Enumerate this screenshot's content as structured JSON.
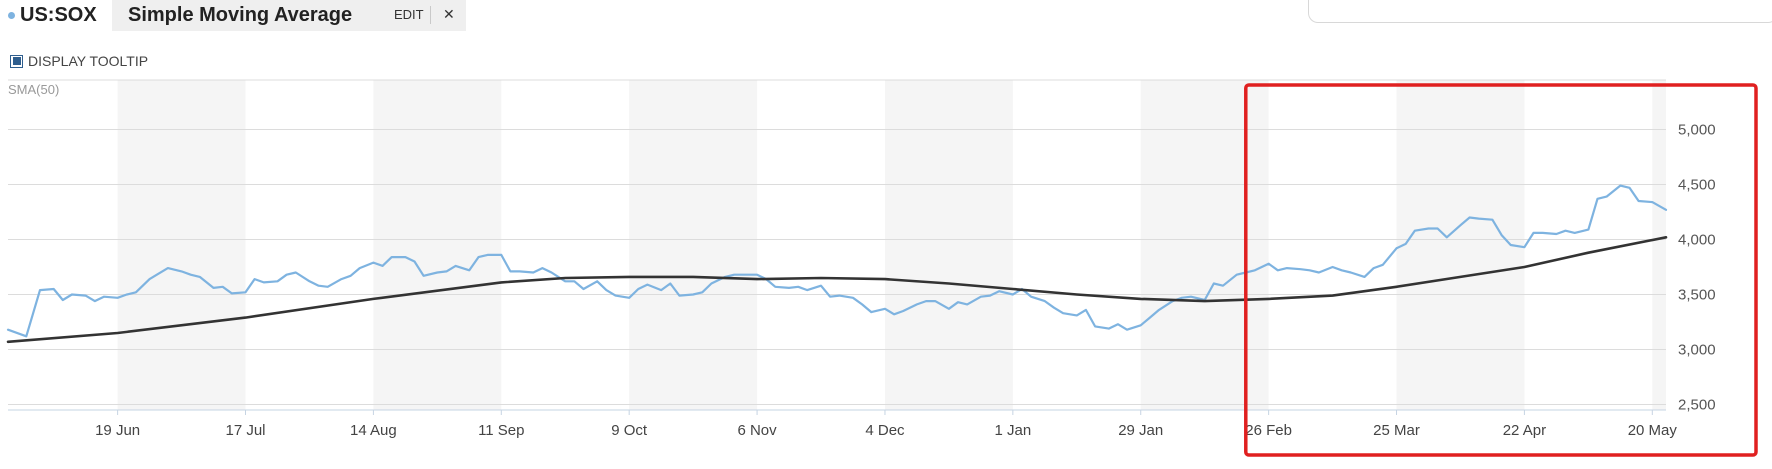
{
  "header": {
    "symbol": "US:SOX",
    "study": "Simple Moving Average",
    "edit_label": "EDIT",
    "close_label": "✕"
  },
  "tooltip_toggle": {
    "label": "DISPLAY TOOLTIP",
    "checked": true
  },
  "colors": {
    "price": "#7eb3e0",
    "sma": "#333333",
    "band": "#f5f5f5",
    "grid": "#dcdcdc",
    "highlight": "#e02020"
  },
  "chart_data": {
    "type": "line",
    "indicator_label": "SMA(50)",
    "xlabel": "",
    "ylabel": "",
    "x_start": "2023-05-26",
    "x_end": "2024-05-23",
    "x_ticks": [
      {
        "date": "2023-06-19",
        "label": "19 Jun"
      },
      {
        "date": "2023-07-17",
        "label": "17 Jul"
      },
      {
        "date": "2023-08-14",
        "label": "14 Aug"
      },
      {
        "date": "2023-09-11",
        "label": "11 Sep"
      },
      {
        "date": "2023-10-09",
        "label": "9 Oct"
      },
      {
        "date": "2023-11-06",
        "label": "6 Nov"
      },
      {
        "date": "2023-12-04",
        "label": "4 Dec"
      },
      {
        "date": "2024-01-01",
        "label": "1 Jan"
      },
      {
        "date": "2024-01-29",
        "label": "29 Jan"
      },
      {
        "date": "2024-02-26",
        "label": "26 Feb"
      },
      {
        "date": "2024-03-25",
        "label": "25 Mar"
      },
      {
        "date": "2024-04-22",
        "label": "22 Apr"
      },
      {
        "date": "2024-05-20",
        "label": "20 May"
      }
    ],
    "y_ticks": [
      2500,
      3000,
      3500,
      4000,
      4500,
      5000
    ],
    "y_tick_labels": [
      "2,500",
      "3,000",
      "3,500",
      "4,000",
      "4,500",
      "5,000"
    ],
    "ylim": [
      2450,
      5450
    ],
    "grid": true,
    "series": [
      {
        "role": "price",
        "points": [
          [
            "2023-05-26",
            3180
          ],
          [
            "2023-05-30",
            3120
          ],
          [
            "2023-06-02",
            3540
          ],
          [
            "2023-06-05",
            3550
          ],
          [
            "2023-06-07",
            3450
          ],
          [
            "2023-06-09",
            3500
          ],
          [
            "2023-06-12",
            3490
          ],
          [
            "2023-06-14",
            3440
          ],
          [
            "2023-06-16",
            3480
          ],
          [
            "2023-06-19",
            3470
          ],
          [
            "2023-06-21",
            3500
          ],
          [
            "2023-06-23",
            3520
          ],
          [
            "2023-06-26",
            3640
          ],
          [
            "2023-06-28",
            3690
          ],
          [
            "2023-06-30",
            3740
          ],
          [
            "2023-07-03",
            3710
          ],
          [
            "2023-07-05",
            3680
          ],
          [
            "2023-07-07",
            3660
          ],
          [
            "2023-07-10",
            3560
          ],
          [
            "2023-07-12",
            3570
          ],
          [
            "2023-07-14",
            3510
          ],
          [
            "2023-07-17",
            3520
          ],
          [
            "2023-07-19",
            3640
          ],
          [
            "2023-07-21",
            3610
          ],
          [
            "2023-07-24",
            3620
          ],
          [
            "2023-07-26",
            3680
          ],
          [
            "2023-07-28",
            3700
          ],
          [
            "2023-07-31",
            3620
          ],
          [
            "2023-08-02",
            3580
          ],
          [
            "2023-08-04",
            3570
          ],
          [
            "2023-08-07",
            3640
          ],
          [
            "2023-08-09",
            3670
          ],
          [
            "2023-08-11",
            3740
          ],
          [
            "2023-08-14",
            3790
          ],
          [
            "2023-08-16",
            3760
          ],
          [
            "2023-08-18",
            3840
          ],
          [
            "2023-08-21",
            3840
          ],
          [
            "2023-08-23",
            3800
          ],
          [
            "2023-08-25",
            3670
          ],
          [
            "2023-08-28",
            3700
          ],
          [
            "2023-08-30",
            3710
          ],
          [
            "2023-09-01",
            3760
          ],
          [
            "2023-09-04",
            3720
          ],
          [
            "2023-09-06",
            3840
          ],
          [
            "2023-09-08",
            3860
          ],
          [
            "2023-09-11",
            3860
          ],
          [
            "2023-09-13",
            3710
          ],
          [
            "2023-09-15",
            3710
          ],
          [
            "2023-09-18",
            3700
          ],
          [
            "2023-09-20",
            3740
          ],
          [
            "2023-09-22",
            3700
          ],
          [
            "2023-09-25",
            3620
          ],
          [
            "2023-09-27",
            3620
          ],
          [
            "2023-09-29",
            3550
          ],
          [
            "2023-10-02",
            3620
          ],
          [
            "2023-10-04",
            3540
          ],
          [
            "2023-10-06",
            3490
          ],
          [
            "2023-10-09",
            3470
          ],
          [
            "2023-10-11",
            3550
          ],
          [
            "2023-10-13",
            3590
          ],
          [
            "2023-10-16",
            3540
          ],
          [
            "2023-10-18",
            3600
          ],
          [
            "2023-10-20",
            3490
          ],
          [
            "2023-10-23",
            3500
          ],
          [
            "2023-10-25",
            3520
          ],
          [
            "2023-10-27",
            3600
          ],
          [
            "2023-10-30",
            3660
          ],
          [
            "2023-11-01",
            3680
          ],
          [
            "2023-11-03",
            3680
          ],
          [
            "2023-11-06",
            3680
          ],
          [
            "2023-11-08",
            3640
          ],
          [
            "2023-11-10",
            3570
          ],
          [
            "2023-11-13",
            3560
          ],
          [
            "2023-11-15",
            3570
          ],
          [
            "2023-11-17",
            3540
          ],
          [
            "2023-11-20",
            3580
          ],
          [
            "2023-11-22",
            3480
          ],
          [
            "2023-11-24",
            3490
          ],
          [
            "2023-11-27",
            3470
          ],
          [
            "2023-11-29",
            3410
          ],
          [
            "2023-12-01",
            3340
          ],
          [
            "2023-12-04",
            3370
          ],
          [
            "2023-12-06",
            3320
          ],
          [
            "2023-12-08",
            3350
          ],
          [
            "2023-12-11",
            3410
          ],
          [
            "2023-12-13",
            3440
          ],
          [
            "2023-12-15",
            3440
          ],
          [
            "2023-12-18",
            3370
          ],
          [
            "2023-12-20",
            3430
          ],
          [
            "2023-12-22",
            3410
          ],
          [
            "2023-12-25",
            3480
          ],
          [
            "2023-12-27",
            3490
          ],
          [
            "2023-12-29",
            3530
          ],
          [
            "2024-01-01",
            3500
          ],
          [
            "2024-01-03",
            3550
          ],
          [
            "2024-01-05",
            3480
          ],
          [
            "2024-01-08",
            3440
          ],
          [
            "2024-01-10",
            3380
          ],
          [
            "2024-01-12",
            3330
          ],
          [
            "2024-01-15",
            3310
          ],
          [
            "2024-01-17",
            3360
          ],
          [
            "2024-01-19",
            3210
          ],
          [
            "2024-01-22",
            3190
          ],
          [
            "2024-01-24",
            3230
          ],
          [
            "2024-01-26",
            3180
          ],
          [
            "2024-01-29",
            3220
          ],
          [
            "2024-01-31",
            3290
          ],
          [
            "2024-02-02",
            3360
          ],
          [
            "2024-02-05",
            3440
          ],
          [
            "2024-02-07",
            3470
          ],
          [
            "2024-02-09",
            3480
          ],
          [
            "2024-02-12",
            3450
          ],
          [
            "2024-02-14",
            3600
          ],
          [
            "2024-02-16",
            3580
          ],
          [
            "2024-02-19",
            3680
          ],
          [
            "2024-02-21",
            3700
          ],
          [
            "2024-02-23",
            3720
          ],
          [
            "2024-02-26",
            3780
          ],
          [
            "2024-02-28",
            3720
          ],
          [
            "2024-03-01",
            3740
          ],
          [
            "2024-03-04",
            3730
          ],
          [
            "2024-03-06",
            3720
          ],
          [
            "2024-03-08",
            3700
          ],
          [
            "2024-03-11",
            3750
          ],
          [
            "2024-03-13",
            3720
          ],
          [
            "2024-03-15",
            3700
          ],
          [
            "2024-03-18",
            3660
          ],
          [
            "2024-03-20",
            3740
          ],
          [
            "2024-03-22",
            3770
          ],
          [
            "2024-03-25",
            3920
          ],
          [
            "2024-03-27",
            3960
          ],
          [
            "2024-03-29",
            4080
          ],
          [
            "2024-04-01",
            4100
          ],
          [
            "2024-04-03",
            4100
          ],
          [
            "2024-04-05",
            4020
          ],
          [
            "2024-04-08",
            4130
          ],
          [
            "2024-04-10",
            4200
          ],
          [
            "2024-04-12",
            4190
          ],
          [
            "2024-04-15",
            4180
          ],
          [
            "2024-04-17",
            4040
          ],
          [
            "2024-04-19",
            3950
          ],
          [
            "2024-04-22",
            3930
          ],
          [
            "2024-04-24",
            4060
          ],
          [
            "2024-04-26",
            4060
          ],
          [
            "2024-04-29",
            4050
          ],
          [
            "2024-05-01",
            4080
          ],
          [
            "2024-05-03",
            4060
          ],
          [
            "2024-05-06",
            4090
          ],
          [
            "2024-05-08",
            4370
          ],
          [
            "2024-05-10",
            4390
          ],
          [
            "2024-05-13",
            4490
          ],
          [
            "2024-05-15",
            4470
          ],
          [
            "2024-05-17",
            4350
          ],
          [
            "2024-05-20",
            4340
          ],
          [
            "2024-05-23",
            4270
          ]
        ]
      },
      {
        "role": "sma",
        "points": [
          [
            "2023-05-26",
            3070
          ],
          [
            "2023-06-19",
            3150
          ],
          [
            "2023-07-17",
            3290
          ],
          [
            "2023-08-14",
            3460
          ],
          [
            "2023-09-11",
            3610
          ],
          [
            "2023-09-25",
            3650
          ],
          [
            "2023-10-09",
            3660
          ],
          [
            "2023-10-23",
            3660
          ],
          [
            "2023-11-06",
            3640
          ],
          [
            "2023-11-20",
            3650
          ],
          [
            "2023-12-04",
            3640
          ],
          [
            "2023-12-18",
            3600
          ],
          [
            "2024-01-01",
            3550
          ],
          [
            "2024-01-15",
            3500
          ],
          [
            "2024-01-29",
            3460
          ],
          [
            "2024-02-12",
            3440
          ],
          [
            "2024-02-26",
            3460
          ],
          [
            "2024-03-11",
            3490
          ],
          [
            "2024-03-25",
            3570
          ],
          [
            "2024-04-08",
            3660
          ],
          [
            "2024-04-22",
            3750
          ],
          [
            "2024-05-06",
            3880
          ],
          [
            "2024-05-23",
            4020
          ]
        ]
      }
    ],
    "highlight_box": {
      "from": "2024-02-21",
      "to": "2024-05-23"
    }
  }
}
